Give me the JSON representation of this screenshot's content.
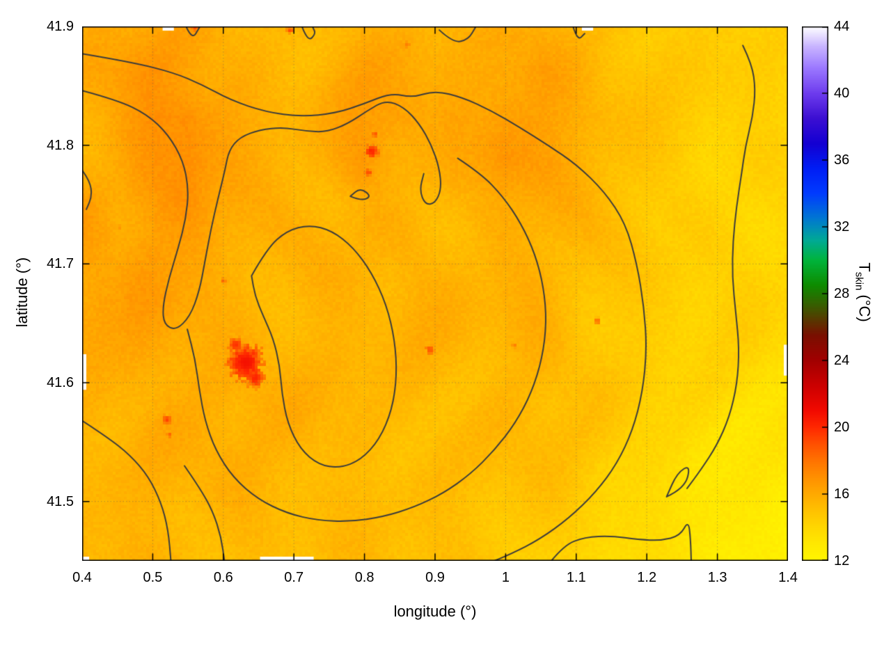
{
  "figure": {
    "xlabel": "longitude (°)",
    "ylabel": "latitude (°)",
    "cblabel_pre": "T",
    "cblabel_sub": "skin",
    "cblabel_post": " (°C)"
  },
  "chart_data": {
    "type": "heatmap",
    "title": "",
    "xlabel": "longitude (°)",
    "ylabel": "latitude (°)",
    "colorbar_label": "T_skin (°C)",
    "xlim": [
      0.4,
      1.4
    ],
    "ylim": [
      41.45,
      41.9
    ],
    "colorbar_range": [
      12,
      44
    ],
    "grid_lines": true,
    "xticks": [
      "0.4",
      "0.5",
      "0.6",
      "0.7",
      "0.8",
      "0.9",
      "1",
      "1.1",
      "1.2",
      "1.3",
      "1.4"
    ],
    "xtick_values": [
      0.4,
      0.5,
      0.6,
      0.7,
      0.8,
      0.9,
      1.0,
      1.1,
      1.2,
      1.3,
      1.4
    ],
    "yticks": [
      "41.5",
      "41.6",
      "41.7",
      "41.8",
      "41.9"
    ],
    "ytick_values": [
      41.5,
      41.6,
      41.7,
      41.8,
      41.9
    ],
    "cbticks": [
      "12",
      "16",
      "20",
      "24",
      "28",
      "32",
      "36",
      "40",
      "44"
    ],
    "cbtick_values": [
      12,
      16,
      20,
      24,
      28,
      32,
      36,
      40,
      44
    ],
    "palette": [
      [
        12,
        "#fff600"
      ],
      [
        13,
        "#ffe900"
      ],
      [
        14,
        "#ffd700"
      ],
      [
        15,
        "#ffc200"
      ],
      [
        16,
        "#ffaa00"
      ],
      [
        17,
        "#ff9000"
      ],
      [
        18,
        "#ff7300"
      ],
      [
        19,
        "#ff5000"
      ],
      [
        20,
        "#ff2800"
      ],
      [
        21,
        "#f20a00"
      ],
      [
        22.5,
        "#cc0000"
      ],
      [
        24,
        "#a20000"
      ],
      [
        25.5,
        "#7a1000"
      ],
      [
        27,
        "#435200"
      ],
      [
        28.5,
        "#0e8c00"
      ],
      [
        30,
        "#00b43c"
      ],
      [
        31.2,
        "#00aa96"
      ],
      [
        32.5,
        "#0078d2"
      ],
      [
        34,
        "#003cff"
      ],
      [
        35.5,
        "#001ef5"
      ],
      [
        37,
        "#1400d2"
      ],
      [
        38.5,
        "#3c0fd2"
      ],
      [
        40,
        "#6e3cee"
      ],
      [
        41.5,
        "#9b78ff"
      ],
      [
        42.8,
        "#c8b4ff"
      ],
      [
        44,
        "#ffffff"
      ]
    ],
    "temperature_grid": {
      "nx": 21,
      "ny": 13,
      "lon0": 0.4,
      "lon1": 1.4,
      "lat0": 41.9,
      "lat1": 41.45,
      "values": [
        [
          15.6,
          15.8,
          16.0,
          16.2,
          15.8,
          15.6,
          15.4,
          15.6,
          15.8,
          15.6,
          15.4,
          15.6,
          15.8,
          16.0,
          15.6,
          15.2,
          14.8,
          14.6,
          14.4,
          14.3,
          14.2
        ],
        [
          16.0,
          16.4,
          16.8,
          16.5,
          16.0,
          15.6,
          15.5,
          15.8,
          16.2,
          16.0,
          15.6,
          15.8,
          16.4,
          16.6,
          16.0,
          15.4,
          14.9,
          14.6,
          14.4,
          14.3,
          14.2
        ],
        [
          15.8,
          16.2,
          16.9,
          17.2,
          16.4,
          15.8,
          15.6,
          15.9,
          16.3,
          16.5,
          16.0,
          16.2,
          16.6,
          16.4,
          16.0,
          15.4,
          14.9,
          14.6,
          14.4,
          14.3,
          14.2
        ],
        [
          15.8,
          16.0,
          16.6,
          17.0,
          16.2,
          15.8,
          15.6,
          15.8,
          16.8,
          16.2,
          15.8,
          16.0,
          16.8,
          16.2,
          15.8,
          15.3,
          14.9,
          14.6,
          14.4,
          14.3,
          14.2
        ],
        [
          16.6,
          16.2,
          16.6,
          16.9,
          16.0,
          15.6,
          15.5,
          15.6,
          15.8,
          15.7,
          15.6,
          15.6,
          16.0,
          15.8,
          15.5,
          15.2,
          14.8,
          14.5,
          14.3,
          14.2,
          14.1
        ],
        [
          16.4,
          16.0,
          16.8,
          16.4,
          15.8,
          15.6,
          15.5,
          15.6,
          15.7,
          15.6,
          15.5,
          15.6,
          15.8,
          15.6,
          15.4,
          15.0,
          14.7,
          14.4,
          14.3,
          14.2,
          14.1
        ],
        [
          16.2,
          15.9,
          16.5,
          16.2,
          15.8,
          15.7,
          15.6,
          15.6,
          15.6,
          15.5,
          15.5,
          15.5,
          15.7,
          15.9,
          15.4,
          15.0,
          14.6,
          14.4,
          14.2,
          14.1,
          14.0
        ],
        [
          16.0,
          15.8,
          16.2,
          16.0,
          15.8,
          15.9,
          15.7,
          15.6,
          15.6,
          15.6,
          15.5,
          15.5,
          15.6,
          15.8,
          15.3,
          14.9,
          14.5,
          14.3,
          14.1,
          14.0,
          13.9
        ],
        [
          15.9,
          15.8,
          16.0,
          15.9,
          15.8,
          15.8,
          15.7,
          15.6,
          15.5,
          15.5,
          15.4,
          15.4,
          15.5,
          15.4,
          15.2,
          14.8,
          14.4,
          14.2,
          14.0,
          13.8,
          13.6
        ],
        [
          15.8,
          15.7,
          15.9,
          15.8,
          15.7,
          15.6,
          15.6,
          15.5,
          15.5,
          15.4,
          15.4,
          15.3,
          15.4,
          15.3,
          15.0,
          14.6,
          14.2,
          13.9,
          13.7,
          13.5,
          13.3
        ],
        [
          15.7,
          15.6,
          15.8,
          15.7,
          15.6,
          15.5,
          15.5,
          15.4,
          15.4,
          15.3,
          15.3,
          15.2,
          15.2,
          15.1,
          14.8,
          14.4,
          14.0,
          13.6,
          13.3,
          13.1,
          12.9
        ],
        [
          15.6,
          15.5,
          15.6,
          15.6,
          15.5,
          15.4,
          15.4,
          15.3,
          15.3,
          15.2,
          15.2,
          15.1,
          15.0,
          14.8,
          14.5,
          14.1,
          13.7,
          13.3,
          13.0,
          12.8,
          12.6
        ],
        [
          15.6,
          15.5,
          15.5,
          15.5,
          15.4,
          15.4,
          15.3,
          15.2,
          15.2,
          15.1,
          15.0,
          14.9,
          14.8,
          14.6,
          14.3,
          13.9,
          13.5,
          13.1,
          12.8,
          12.5,
          12.3
        ]
      ]
    },
    "hotspots": [
      {
        "lon": 0.632,
        "lat": 41.617,
        "r": 26,
        "t": 20.8
      },
      {
        "lon": 0.645,
        "lat": 41.604,
        "r": 15,
        "t": 20.2
      },
      {
        "lon": 0.618,
        "lat": 41.632,
        "r": 12,
        "t": 19.8
      },
      {
        "lon": 0.81,
        "lat": 41.795,
        "r": 11,
        "t": 20.2
      },
      {
        "lon": 0.806,
        "lat": 41.777,
        "r": 7,
        "t": 19.2
      },
      {
        "lon": 0.815,
        "lat": 41.809,
        "r": 6,
        "t": 19.0
      },
      {
        "lon": 0.52,
        "lat": 41.569,
        "r": 8,
        "t": 19.4
      },
      {
        "lon": 0.524,
        "lat": 41.556,
        "r": 5,
        "t": 18.6
      },
      {
        "lon": 0.893,
        "lat": 41.628,
        "r": 8,
        "t": 19.0
      },
      {
        "lon": 1.13,
        "lat": 41.652,
        "r": 5,
        "t": 18.6
      },
      {
        "lon": 1.012,
        "lat": 41.631,
        "r": 5,
        "t": 18.0
      },
      {
        "lon": 0.601,
        "lat": 41.686,
        "r": 5,
        "t": 18.6
      },
      {
        "lon": 0.56,
        "lat": 41.899,
        "r": 6,
        "t": 19.0
      },
      {
        "lon": 0.695,
        "lat": 41.897,
        "r": 6,
        "t": 19.2
      },
      {
        "lon": 0.86,
        "lat": 41.885,
        "r": 8,
        "t": 17.6
      },
      {
        "lon": 0.455,
        "lat": 41.731,
        "r": 4,
        "t": 17.6
      }
    ],
    "contours": [
      [
        [
          0.4,
          41.877
        ],
        [
          0.47,
          41.87
        ],
        [
          0.53,
          41.861
        ],
        [
          0.57,
          41.851
        ],
        [
          0.61,
          41.838
        ],
        [
          0.66,
          41.828
        ],
        [
          0.71,
          41.824
        ],
        [
          0.76,
          41.827
        ],
        [
          0.8,
          41.835
        ],
        [
          0.838,
          41.844
        ],
        [
          0.868,
          41.84
        ],
        [
          0.9,
          41.846
        ],
        [
          0.94,
          41.84
        ],
        [
          0.98,
          41.829
        ],
        [
          1.02,
          41.815
        ],
        [
          1.06,
          41.8
        ],
        [
          1.1,
          41.784
        ],
        [
          1.14,
          41.761
        ],
        [
          1.17,
          41.734
        ],
        [
          1.186,
          41.7
        ],
        [
          1.196,
          41.664
        ],
        [
          1.2,
          41.628
        ],
        [
          1.194,
          41.592
        ],
        [
          1.18,
          41.56
        ],
        [
          1.158,
          41.532
        ],
        [
          1.128,
          41.508
        ],
        [
          1.09,
          41.486
        ],
        [
          1.048,
          41.468
        ],
        [
          1.008,
          41.456
        ],
        [
          0.976,
          41.448
        ]
      ],
      [
        [
          0.4,
          41.846
        ],
        [
          0.45,
          41.838
        ],
        [
          0.492,
          41.826
        ],
        [
          0.522,
          41.809
        ],
        [
          0.543,
          41.787
        ],
        [
          0.551,
          41.763
        ],
        [
          0.547,
          41.738
        ],
        [
          0.536,
          41.713
        ],
        [
          0.523,
          41.688
        ],
        [
          0.514,
          41.664
        ],
        [
          0.516,
          41.649
        ],
        [
          0.533,
          41.644
        ],
        [
          0.553,
          41.656
        ],
        [
          0.566,
          41.677
        ],
        [
          0.574,
          41.702
        ],
        [
          0.582,
          41.728
        ],
        [
          0.592,
          41.754
        ],
        [
          0.602,
          41.778
        ],
        [
          0.608,
          41.796
        ],
        [
          0.624,
          41.807
        ],
        [
          0.652,
          41.813
        ],
        [
          0.684,
          41.815
        ],
        [
          0.716,
          41.812
        ],
        [
          0.746,
          41.811
        ],
        [
          0.776,
          41.818
        ],
        [
          0.804,
          41.829
        ],
        [
          0.83,
          41.838
        ],
        [
          0.856,
          41.832
        ],
        [
          0.878,
          41.818
        ],
        [
          0.895,
          41.8
        ],
        [
          0.906,
          41.781
        ],
        [
          0.909,
          41.763
        ],
        [
          0.9,
          41.751
        ],
        [
          0.886,
          41.75
        ],
        [
          0.878,
          41.762
        ],
        [
          0.884,
          41.776
        ]
      ],
      [
        [
          0.932,
          41.789
        ],
        [
          0.965,
          41.776
        ],
        [
          0.996,
          41.757
        ],
        [
          1.022,
          41.734
        ],
        [
          1.042,
          41.708
        ],
        [
          1.054,
          41.68
        ],
        [
          1.058,
          41.651
        ],
        [
          1.052,
          41.621
        ],
        [
          1.037,
          41.592
        ],
        [
          1.014,
          41.566
        ],
        [
          0.984,
          41.543
        ],
        [
          0.95,
          41.523
        ],
        [
          0.912,
          41.507
        ],
        [
          0.87,
          41.495
        ],
        [
          0.826,
          41.487
        ],
        [
          0.78,
          41.483
        ],
        [
          0.734,
          41.484
        ],
        [
          0.69,
          41.49
        ],
        [
          0.649,
          41.502
        ],
        [
          0.614,
          41.52
        ],
        [
          0.589,
          41.543
        ],
        [
          0.574,
          41.568
        ],
        [
          0.566,
          41.594
        ],
        [
          0.56,
          41.62
        ],
        [
          0.549,
          41.645
        ]
      ],
      [
        [
          0.4,
          41.568
        ],
        [
          0.436,
          41.554
        ],
        [
          0.468,
          41.539
        ],
        [
          0.494,
          41.521
        ],
        [
          0.512,
          41.499
        ],
        [
          0.522,
          41.476
        ],
        [
          0.526,
          41.448
        ]
      ],
      [
        [
          0.545,
          41.53
        ],
        [
          0.566,
          41.512
        ],
        [
          0.585,
          41.492
        ],
        [
          0.597,
          41.47
        ],
        [
          0.602,
          41.448
        ]
      ],
      [
        [
          0.64,
          41.69
        ],
        [
          0.662,
          41.713
        ],
        [
          0.69,
          41.728
        ],
        [
          0.722,
          41.733
        ],
        [
          0.754,
          41.728
        ],
        [
          0.784,
          41.714
        ],
        [
          0.81,
          41.693
        ],
        [
          0.831,
          41.666
        ],
        [
          0.843,
          41.636
        ],
        [
          0.846,
          41.606
        ],
        [
          0.839,
          41.577
        ],
        [
          0.821,
          41.552
        ],
        [
          0.795,
          41.535
        ],
        [
          0.765,
          41.528
        ],
        [
          0.735,
          41.531
        ],
        [
          0.709,
          41.544
        ],
        [
          0.691,
          41.566
        ],
        [
          0.683,
          41.591
        ],
        [
          0.68,
          41.614
        ],
        [
          0.671,
          41.637
        ],
        [
          0.656,
          41.657
        ],
        [
          0.645,
          41.673
        ],
        [
          0.64,
          41.69
        ]
      ],
      [
        [
          1.336,
          41.884
        ],
        [
          1.349,
          41.868
        ],
        [
          1.354,
          41.847
        ],
        [
          1.35,
          41.824
        ],
        [
          1.34,
          41.8
        ],
        [
          1.334,
          41.775
        ],
        [
          1.327,
          41.748
        ],
        [
          1.322,
          41.719
        ],
        [
          1.321,
          41.689
        ],
        [
          1.326,
          41.659
        ],
        [
          1.331,
          41.629
        ],
        [
          1.328,
          41.599
        ],
        [
          1.317,
          41.571
        ],
        [
          1.299,
          41.547
        ],
        [
          1.277,
          41.527
        ],
        [
          1.257,
          41.511
        ]
      ],
      [
        [
          1.062,
          41.448
        ],
        [
          1.082,
          41.463
        ],
        [
          1.112,
          41.47
        ],
        [
          1.15,
          41.471
        ],
        [
          1.188,
          41.468
        ],
        [
          1.22,
          41.467
        ],
        [
          1.247,
          41.471
        ],
        [
          1.259,
          41.484
        ],
        [
          1.262,
          41.468
        ],
        [
          1.263,
          41.448
        ]
      ],
      [
        [
          1.228,
          41.504
        ],
        [
          1.254,
          41.511
        ],
        [
          1.262,
          41.531
        ],
        [
          1.243,
          41.524
        ],
        [
          1.228,
          41.504
        ]
      ],
      [
        [
          0.78,
          41.757
        ],
        [
          0.796,
          41.753
        ],
        [
          0.81,
          41.757
        ],
        [
          0.794,
          41.764
        ],
        [
          0.78,
          41.757
        ]
      ],
      [
        [
          0.4,
          41.779
        ],
        [
          0.411,
          41.77
        ],
        [
          0.414,
          41.757
        ],
        [
          0.406,
          41.746
        ]
      ],
      [
        [
          0.548,
          41.899
        ],
        [
          0.556,
          41.889
        ],
        [
          0.566,
          41.899
        ]
      ],
      [
        [
          0.712,
          41.899
        ],
        [
          0.72,
          41.887
        ],
        [
          0.731,
          41.894
        ],
        [
          0.727,
          41.899
        ]
      ],
      [
        [
          0.906,
          41.897
        ],
        [
          0.926,
          41.886
        ],
        [
          0.947,
          41.889
        ],
        [
          0.957,
          41.899
        ]
      ],
      [
        [
          1.096,
          41.899
        ],
        [
          1.102,
          41.888
        ],
        [
          1.112,
          41.894
        ]
      ]
    ],
    "missing_data_notches": [
      {
        "edge": "bottom",
        "a": 0.652,
        "b": 0.728
      },
      {
        "edge": "bottom",
        "a": 0.4,
        "b": 0.41
      },
      {
        "edge": "left",
        "a": 41.594,
        "b": 41.624
      },
      {
        "edge": "top",
        "a": 0.514,
        "b": 0.53
      },
      {
        "edge": "top",
        "a": 1.108,
        "b": 1.124
      },
      {
        "edge": "right",
        "a": 41.606,
        "b": 41.632
      }
    ]
  }
}
